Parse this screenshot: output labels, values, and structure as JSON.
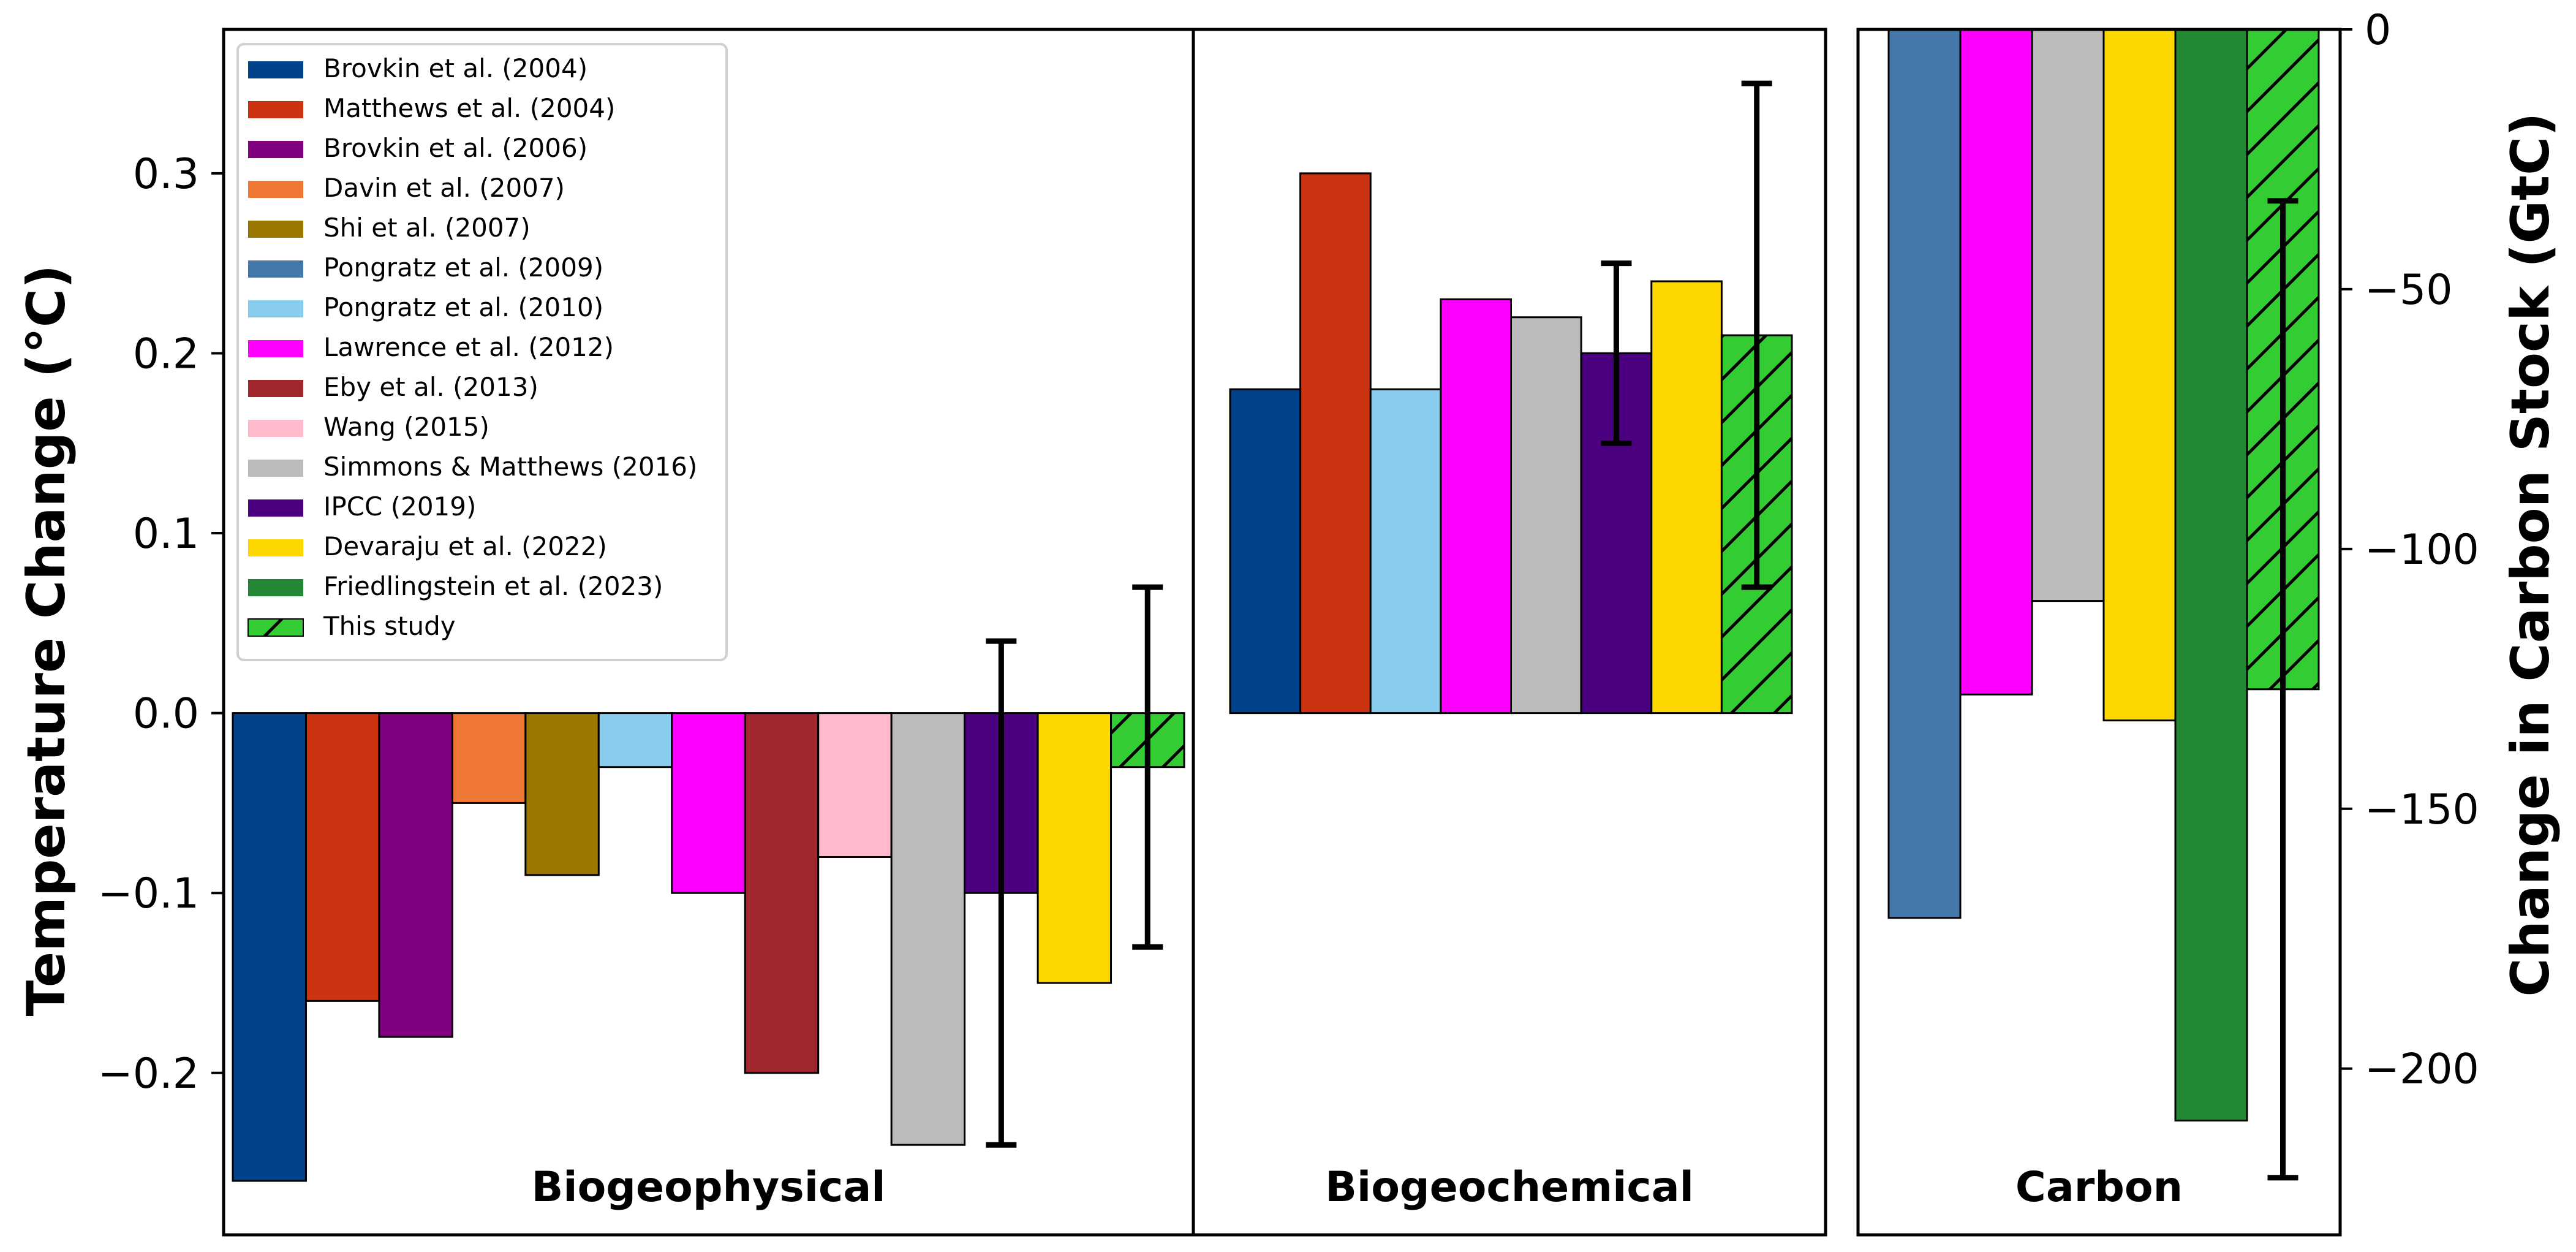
{
  "chart_data": {
    "type": "bar",
    "title": "",
    "ylabel_left": "Temperature Change (°C)",
    "ylabel_right": "Change in Carbon Stock (GtC)",
    "ylim_left": [
      -0.29,
      0.38
    ],
    "ylim_right": [
      -232,
      0
    ],
    "yticks_left": [
      {
        "value": 0.3,
        "label": "0.3"
      },
      {
        "value": 0.2,
        "label": "0.2"
      },
      {
        "value": 0.1,
        "label": "0.1"
      },
      {
        "value": 0.0,
        "label": "0.0"
      },
      {
        "value": -0.1,
        "label": "−0.1"
      },
      {
        "value": -0.2,
        "label": "−0.2"
      }
    ],
    "yticks_right": [
      {
        "value": 0,
        "label": "0"
      },
      {
        "value": -50,
        "label": "−50"
      },
      {
        "value": -100,
        "label": "−100"
      },
      {
        "value": -150,
        "label": "−150"
      },
      {
        "value": -200,
        "label": "−200"
      }
    ],
    "grid": false,
    "legend_position": "top-left",
    "studies": [
      {
        "name": "Brovkin et al. (2004)",
        "color": "#00438A"
      },
      {
        "name": "Matthews et al. (2004)",
        "color": "#CC3311"
      },
      {
        "name": "Brovkin et al. (2006)",
        "color": "#800080"
      },
      {
        "name": "Davin et al. (2007)",
        "color": "#EE7733"
      },
      {
        "name": "Shi et al. (2007)",
        "color": "#997700"
      },
      {
        "name": "Pongratz et al. (2009)",
        "color": "#4477AA"
      },
      {
        "name": "Pongratz et al. (2010)",
        "color": "#88CCEE"
      },
      {
        "name": "Lawrence et al. (2012)",
        "color": "#FF00FF"
      },
      {
        "name": "Eby et al. (2013)",
        "color": "#A0282C"
      },
      {
        "name": "Wang (2015)",
        "color": "#FFBBCC"
      },
      {
        "name": "Simmons & Matthews (2016)",
        "color": "#BBBBBB"
      },
      {
        "name": "IPCC (2019)",
        "color": "#4B0082"
      },
      {
        "name": "Devaraju et al. (2022)",
        "color": "#FFD700"
      },
      {
        "name": "Friedlingstein et al. (2023)",
        "color": "#228833"
      },
      {
        "name": "This study",
        "color": "#33CC33",
        "hatch": true
      }
    ],
    "panels": [
      {
        "label": "Biogeophysical",
        "axis": "left",
        "bars": [
          {
            "study": "Brovkin et al. (2004)",
            "value": -0.26
          },
          {
            "study": "Matthews et al. (2004)",
            "value": -0.16
          },
          {
            "study": "Brovkin et al. (2006)",
            "value": -0.18
          },
          {
            "study": "Davin et al. (2007)",
            "value": -0.05
          },
          {
            "study": "Shi et al. (2007)",
            "value": -0.09
          },
          {
            "study": "Pongratz et al. (2010)",
            "value": -0.03
          },
          {
            "study": "Lawrence et al. (2012)",
            "value": -0.1
          },
          {
            "study": "Eby et al. (2013)",
            "value": -0.2
          },
          {
            "study": "Wang (2015)",
            "value": -0.08
          },
          {
            "study": "Simmons & Matthews (2016)",
            "value": -0.24
          },
          {
            "study": "IPCC (2019)",
            "value": -0.1,
            "err_low": -0.24,
            "err_high": 0.04
          },
          {
            "study": "Devaraju et al. (2022)",
            "value": -0.15
          },
          {
            "study": "This study",
            "value": -0.03,
            "err_low": -0.13,
            "err_high": 0.07
          }
        ]
      },
      {
        "label": "Biogeochemical",
        "axis": "left",
        "bars": [
          {
            "study": "Brovkin et al. (2004)",
            "value": 0.18
          },
          {
            "study": "Matthews et al. (2004)",
            "value": 0.3
          },
          {
            "study": "Pongratz et al. (2010)",
            "value": 0.18
          },
          {
            "study": "Lawrence et al. (2012)",
            "value": 0.23
          },
          {
            "study": "Simmons & Matthews (2016)",
            "value": 0.22
          },
          {
            "study": "IPCC (2019)",
            "value": 0.2,
            "err_low": 0.15,
            "err_high": 0.25
          },
          {
            "study": "Devaraju et al. (2022)",
            "value": 0.24
          },
          {
            "study": "This study",
            "value": 0.21,
            "err_low": 0.07,
            "err_high": 0.35
          }
        ]
      },
      {
        "label": "Carbon",
        "axis": "right",
        "bars": [
          {
            "study": "Pongratz et al. (2009)",
            "value": -171
          },
          {
            "study": "Lawrence et al. (2012)",
            "value": -128
          },
          {
            "study": "Simmons & Matthews (2016)",
            "value": -110
          },
          {
            "study": "Devaraju et al. (2022)",
            "value": -133
          },
          {
            "study": "Friedlingstein et al. (2023)",
            "value": -210
          },
          {
            "study": "This study",
            "value": -127,
            "err_low": -221,
            "err_high": -33
          }
        ]
      }
    ]
  }
}
